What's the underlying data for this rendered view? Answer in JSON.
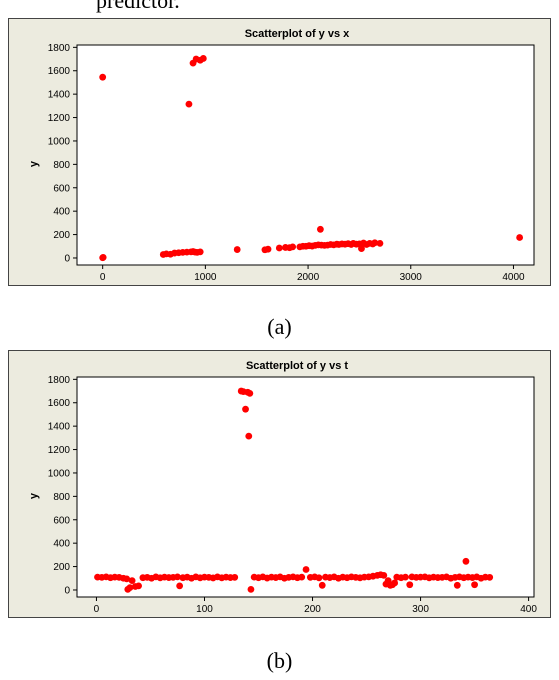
{
  "page": {
    "top_text": "predictor.",
    "caption_a": "(a)",
    "caption_b": "(b)"
  },
  "colors": {
    "point": "#ff0000",
    "panel_bg": "#ecebdf",
    "plot_bg": "#ffffff"
  },
  "chart_data": [
    {
      "type": "scatter",
      "title": "Scatterplot of y vs x",
      "xlabel": "x",
      "ylabel": "y",
      "xlim": [
        -250,
        4200
      ],
      "ylim": [
        -60,
        1820
      ],
      "xticks": [
        0,
        1000,
        2000,
        3000,
        4000
      ],
      "yticks": [
        0,
        200,
        400,
        600,
        800,
        1000,
        1200,
        1400,
        1600,
        1800
      ],
      "grid": false,
      "points": [
        [
          0,
          1545
        ],
        [
          0,
          2
        ],
        [
          5,
          5
        ],
        [
          840,
          1315
        ],
        [
          880,
          1665
        ],
        [
          910,
          1700
        ],
        [
          950,
          1690
        ],
        [
          980,
          1705
        ],
        [
          590,
          30
        ],
        [
          620,
          35
        ],
        [
          660,
          32
        ],
        [
          700,
          42
        ],
        [
          740,
          45
        ],
        [
          780,
          48
        ],
        [
          820,
          50
        ],
        [
          860,
          52
        ],
        [
          880,
          55
        ],
        [
          900,
          50
        ],
        [
          920,
          48
        ],
        [
          950,
          52
        ],
        [
          1310,
          72
        ],
        [
          1580,
          70
        ],
        [
          1610,
          75
        ],
        [
          1720,
          85
        ],
        [
          1780,
          90
        ],
        [
          1820,
          88
        ],
        [
          1850,
          95
        ],
        [
          1920,
          95
        ],
        [
          1950,
          100
        ],
        [
          1980,
          100
        ],
        [
          2010,
          105
        ],
        [
          2040,
          102
        ],
        [
          2070,
          108
        ],
        [
          2100,
          112
        ],
        [
          2120,
          245
        ],
        [
          2130,
          110
        ],
        [
          2160,
          108
        ],
        [
          2190,
          110
        ],
        [
          2220,
          115
        ],
        [
          2250,
          112
        ],
        [
          2280,
          118
        ],
        [
          2300,
          115
        ],
        [
          2330,
          120
        ],
        [
          2360,
          118
        ],
        [
          2390,
          122
        ],
        [
          2420,
          115
        ],
        [
          2440,
          125
        ],
        [
          2470,
          118
        ],
        [
          2500,
          120
        ],
        [
          2520,
          80
        ],
        [
          2540,
          128
        ],
        [
          2570,
          115
        ],
        [
          2600,
          125
        ],
        [
          2630,
          120
        ],
        [
          2650,
          130
        ],
        [
          2700,
          125
        ],
        [
          4060,
          175
        ]
      ]
    },
    {
      "type": "scatter",
      "title": "Scatterplot of y vs t",
      "xlabel": "t",
      "ylabel": "y",
      "xlim": [
        -18,
        405
      ],
      "ylim": [
        -60,
        1820
      ],
      "xticks": [
        0,
        100,
        200,
        300,
        400
      ],
      "yticks": [
        0,
        200,
        400,
        600,
        800,
        1000,
        1200,
        1400,
        1600,
        1800
      ],
      "grid": false,
      "points": [
        [
          1,
          110
        ],
        [
          5,
          108
        ],
        [
          9,
          112
        ],
        [
          13,
          105
        ],
        [
          17,
          110
        ],
        [
          21,
          108
        ],
        [
          25,
          100
        ],
        [
          28,
          95
        ],
        [
          29,
          5
        ],
        [
          31,
          20
        ],
        [
          33,
          80
        ],
        [
          36,
          30
        ],
        [
          39,
          35
        ],
        [
          43,
          105
        ],
        [
          47,
          108
        ],
        [
          51,
          100
        ],
        [
          55,
          112
        ],
        [
          59,
          104
        ],
        [
          63,
          110
        ],
        [
          67,
          106
        ],
        [
          71,
          108
        ],
        [
          75,
          112
        ],
        [
          77,
          35
        ],
        [
          80,
          105
        ],
        [
          84,
          110
        ],
        [
          88,
          100
        ],
        [
          92,
          112
        ],
        [
          96,
          104
        ],
        [
          100,
          110
        ],
        [
          104,
          108
        ],
        [
          108,
          103
        ],
        [
          112,
          112
        ],
        [
          116,
          104
        ],
        [
          120,
          110
        ],
        [
          124,
          106
        ],
        [
          128,
          108
        ],
        [
          134,
          1700
        ],
        [
          136,
          1695
        ],
        [
          138,
          1545
        ],
        [
          140,
          1690
        ],
        [
          141,
          1315
        ],
        [
          142,
          1680
        ],
        [
          143,
          5
        ],
        [
          146,
          110
        ],
        [
          150,
          105
        ],
        [
          154,
          112
        ],
        [
          158,
          102
        ],
        [
          162,
          110
        ],
        [
          166,
          106
        ],
        [
          170,
          112
        ],
        [
          174,
          100
        ],
        [
          178,
          108
        ],
        [
          182,
          112
        ],
        [
          186,
          105
        ],
        [
          190,
          110
        ],
        [
          194,
          175
        ],
        [
          198,
          108
        ],
        [
          202,
          112
        ],
        [
          206,
          104
        ],
        [
          209,
          40
        ],
        [
          212,
          110
        ],
        [
          216,
          106
        ],
        [
          220,
          112
        ],
        [
          224,
          100
        ],
        [
          228,
          110
        ],
        [
          232,
          105
        ],
        [
          236,
          112
        ],
        [
          240,
          108
        ],
        [
          244,
          104
        ],
        [
          248,
          110
        ],
        [
          252,
          112
        ],
        [
          256,
          118
        ],
        [
          260,
          125
        ],
        [
          263,
          130
        ],
        [
          266,
          125
        ],
        [
          268,
          50
        ],
        [
          270,
          80
        ],
        [
          272,
          40
        ],
        [
          274,
          45
        ],
        [
          276,
          60
        ],
        [
          278,
          110
        ],
        [
          282,
          105
        ],
        [
          286,
          110
        ],
        [
          290,
          45
        ],
        [
          292,
          112
        ],
        [
          296,
          108
        ],
        [
          300,
          110
        ],
        [
          304,
          112
        ],
        [
          308,
          104
        ],
        [
          312,
          110
        ],
        [
          316,
          106
        ],
        [
          320,
          108
        ],
        [
          324,
          112
        ],
        [
          328,
          100
        ],
        [
          332,
          108
        ],
        [
          334,
          40
        ],
        [
          336,
          112
        ],
        [
          340,
          105
        ],
        [
          342,
          245
        ],
        [
          344,
          110
        ],
        [
          348,
          106
        ],
        [
          350,
          45
        ],
        [
          352,
          112
        ],
        [
          356,
          100
        ],
        [
          360,
          110
        ],
        [
          364,
          108
        ]
      ]
    }
  ]
}
